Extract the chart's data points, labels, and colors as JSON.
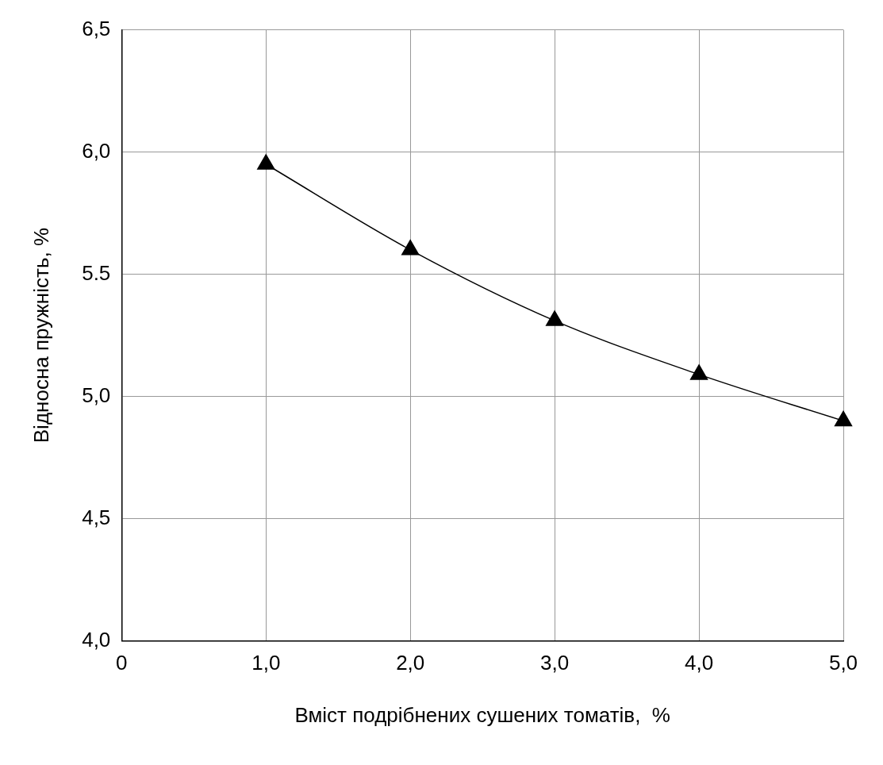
{
  "chart_data": {
    "type": "line",
    "xlabel": "Вміст подрібнених сушених томатів,  %",
    "ylabel": "Відносна пружність, %",
    "x": [
      1,
      2,
      3,
      4,
      5
    ],
    "series": [
      {
        "color": "#000000",
        "values": [
          5.95,
          5.6,
          5.31,
          5.09,
          4.9
        ]
      }
    ],
    "xlim": [
      0,
      5
    ],
    "ylim": [
      4,
      6.5
    ],
    "xticks": [
      0,
      {
        "value": 1,
        "label": "1,0"
      },
      {
        "value": 2,
        "label": "2,0"
      },
      {
        "value": 3,
        "label": "3,0"
      },
      {
        "value": 4,
        "label": "4,0"
      },
      {
        "value": 5,
        "label": "5,0"
      }
    ],
    "yticks": [
      {
        "value": 4,
        "label": "4,0"
      },
      {
        "value": 4.5,
        "label": "4,5"
      },
      {
        "value": 5,
        "label": "5,0"
      },
      5.5,
      {
        "value": 6,
        "label": "6,0"
      },
      {
        "value": 6.5,
        "label": "6,5"
      }
    ],
    "grid": true,
    "marker": "triangle",
    "line_style": "solid",
    "legend": false
  }
}
